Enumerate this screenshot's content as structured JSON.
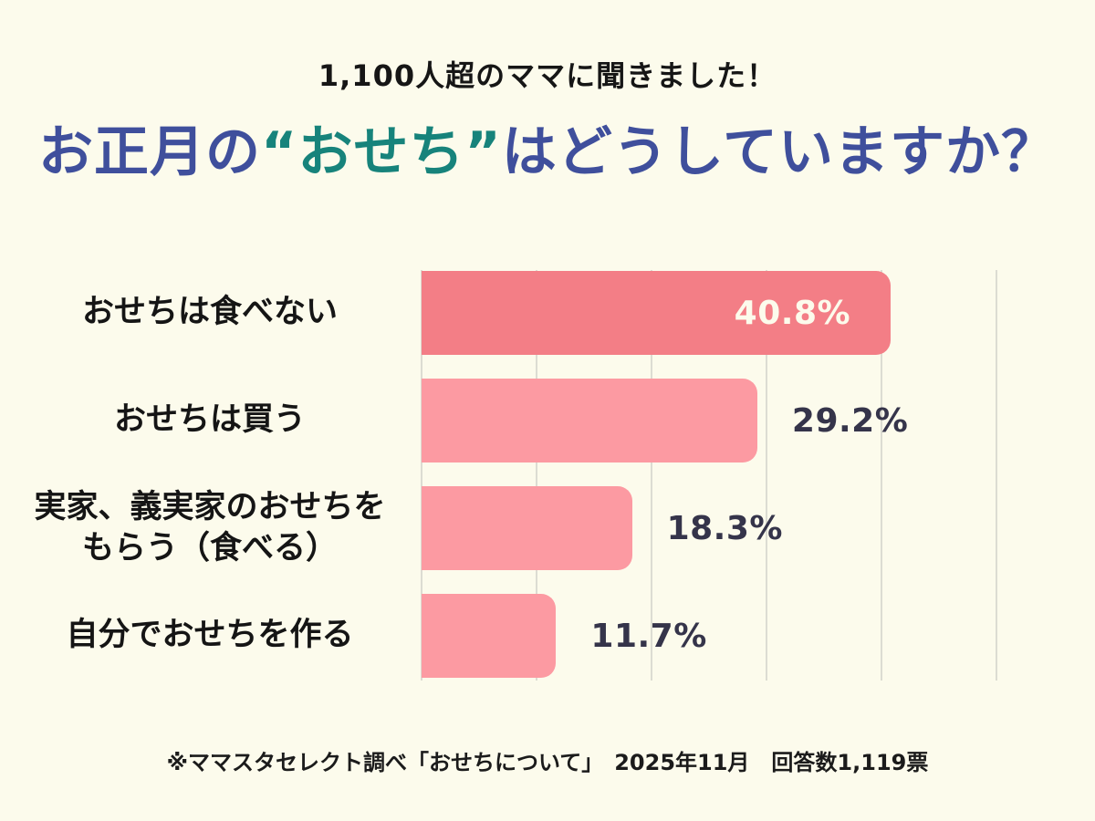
{
  "header": {
    "subtitle": "1,100人超のママに聞きました！",
    "title_part1": "お正月の",
    "title_highlight": "“おせち”",
    "title_part2": "はどうしていますか？"
  },
  "chart_data": {
    "type": "bar",
    "orientation": "horizontal",
    "categories": [
      "おせちは食べない",
      "おせちは買う",
      "実家、義実家のおせちを\nもらう（食べる）",
      "自分でおせちを作る"
    ],
    "values": [
      40.8,
      29.2,
      18.3,
      11.7
    ],
    "value_labels": [
      "40.8%",
      "29.2%",
      "18.3%",
      "11.7%"
    ],
    "value_label_placement": [
      "inside",
      "outside",
      "outside",
      "outside"
    ],
    "emphasized_index": 0,
    "xlim": [
      0,
      50
    ],
    "gridline_step": 10,
    "grid": true,
    "legend": false,
    "title": "お正月の“おせち”はどうしていますか？",
    "xlabel": "",
    "ylabel": "",
    "colors": {
      "background": "#FCFBEC",
      "bar_emphasis": "#F37E86",
      "bar_normal": "#FC9AA2",
      "value_inside_text": "#FCFBEC",
      "value_outside_text": "#35344A",
      "gridline": "#DCDCD2",
      "title_main": "#3F4F9C",
      "title_accent": "#17837B",
      "text": "#151515"
    }
  },
  "footer": {
    "note": "※ママスタセレクト調べ「おせちについて」　2025年11月　回答数1,119票"
  }
}
